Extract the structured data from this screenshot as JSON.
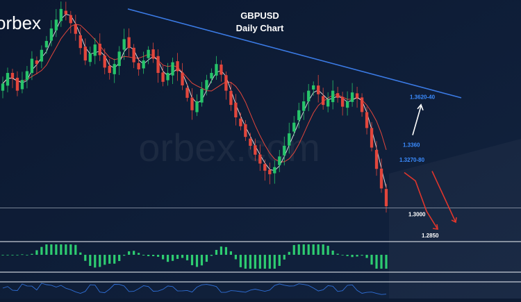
{
  "brand": {
    "logo_text": "orbex",
    "watermark_text": "orbex.com"
  },
  "colors": {
    "background": "#0d1b33",
    "bull_candle": "#26c46a",
    "bear_candle": "#e2463c",
    "ma_fast": "#ffffff",
    "ma_slow": "#e2463c",
    "trendline": "#3b7be6",
    "level_label": "#3b8cff",
    "arrow_up": "#ffffff",
    "arrow_down": "#e0362c",
    "macd_hist": "#2ecc71",
    "rsi_line": "#2f6fd6"
  },
  "chart_data": {
    "type": "candlestick",
    "title": "GBPUSD",
    "subtitle": "Daily Chart",
    "symbol": "GBPUSD",
    "timeframe": "Daily",
    "price_levels": [
      {
        "label": "1.3620-40",
        "value": 1.363,
        "color": "#3b8cff"
      },
      {
        "label": "1.3360",
        "value": 1.336,
        "color": "#3b8cff"
      },
      {
        "label": "1.3270-80",
        "value": 1.3275,
        "color": "#3b8cff"
      },
      {
        "label": "1.3000",
        "value": 1.3,
        "color": "#ffffff"
      },
      {
        "label": "1.2850",
        "value": 1.285,
        "color": "#ffffff"
      }
    ],
    "support_line": {
      "value": 1.3
    },
    "close_path": [
      1.37,
      1.376,
      1.373,
      1.366,
      1.372,
      1.377,
      1.384,
      1.381,
      1.389,
      1.394,
      1.401,
      1.406,
      1.412,
      1.409,
      1.404,
      1.398,
      1.39,
      1.383,
      1.387,
      1.392,
      1.386,
      1.379,
      1.376,
      1.381,
      1.388,
      1.395,
      1.39,
      1.382,
      1.378,
      1.383,
      1.389,
      1.384,
      1.376,
      1.371,
      1.376,
      1.382,
      1.377,
      1.369,
      1.362,
      1.355,
      1.36,
      1.367,
      1.372,
      1.376,
      1.381,
      1.375,
      1.366,
      1.358,
      1.351,
      1.346,
      1.34,
      1.335,
      1.33,
      1.325,
      1.321,
      1.319,
      1.323,
      1.329,
      1.335,
      1.342,
      1.348,
      1.355,
      1.36,
      1.366,
      1.369,
      1.364,
      1.358,
      1.361,
      1.366,
      1.362,
      1.357,
      1.36,
      1.365,
      1.362,
      1.354,
      1.345,
      1.334,
      1.322,
      1.311,
      1.301
    ],
    "downtrend_line": {
      "start": 1.412,
      "end": 1.362
    },
    "projection": {
      "up_arrow_to": 1.362,
      "down_path": [
        1.327,
        1.299,
        1.285
      ]
    },
    "indicators": [
      "MACD histogram",
      "RSI"
    ]
  }
}
